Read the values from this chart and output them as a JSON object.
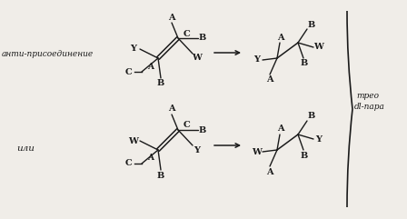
{
  "bg_color": "#f0ede8",
  "line_color": "#1a1a1a",
  "text_color": "#1a1a1a",
  "label_anti": "анти-присоединение",
  "label_ili": "или",
  "label_treo": "трео",
  "label_dl": "dl-пара",
  "figsize": [
    4.48,
    2.41
  ],
  "dpi": 100
}
